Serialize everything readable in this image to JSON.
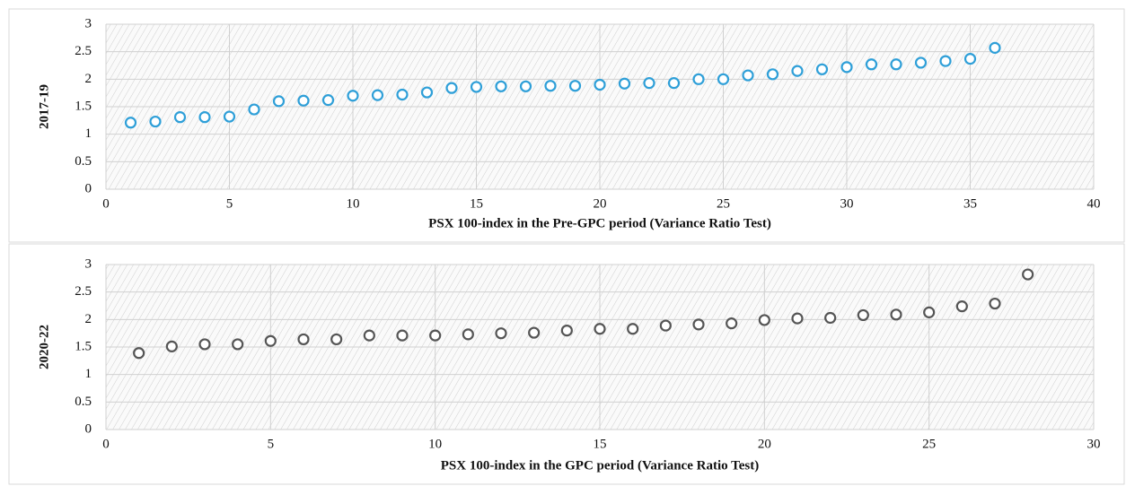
{
  "chart_data": [
    {
      "type": "scatter",
      "x_label": "PSX 100-index in the Pre-GPC period (Variance Ratio Test)",
      "y_label": "2017-19",
      "color": "#2e9fd8",
      "grid": true,
      "xlim": [
        0,
        40
      ],
      "xticks": [
        0,
        5,
        10,
        15,
        20,
        25,
        30,
        35,
        40
      ],
      "ylim": [
        0,
        3
      ],
      "yticks": [
        0,
        0.5,
        1,
        1.5,
        2,
        2.5,
        3
      ],
      "x": [
        1,
        2,
        3,
        4,
        5,
        6,
        7,
        8,
        9,
        10,
        11,
        12,
        13,
        14,
        15,
        16,
        17,
        18,
        19,
        20,
        21,
        22,
        23,
        24,
        25,
        26,
        27,
        28,
        29,
        30,
        31,
        32,
        33,
        34,
        35,
        36
      ],
      "values": [
        1.21,
        1.23,
        1.31,
        1.31,
        1.32,
        1.45,
        1.6,
        1.61,
        1.62,
        1.7,
        1.71,
        1.72,
        1.76,
        1.84,
        1.86,
        1.87,
        1.87,
        1.88,
        1.88,
        1.9,
        1.92,
        1.93,
        1.93,
        2.0,
        2.0,
        2.07,
        2.09,
        2.15,
        2.18,
        2.22,
        2.27,
        2.27,
        2.3,
        2.33,
        2.37,
        2.57
      ]
    },
    {
      "type": "scatter",
      "x_label": "PSX 100-index in the GPC period (Variance Ratio Test)",
      "y_label": "2020-22",
      "color": "#555555",
      "grid": true,
      "xlim": [
        0,
        30
      ],
      "xticks": [
        0,
        5,
        10,
        15,
        20,
        25,
        30
      ],
      "ylim": [
        0,
        3
      ],
      "yticks": [
        0,
        0.5,
        1,
        1.5,
        2,
        2.5,
        3
      ],
      "x": [
        1,
        2,
        3,
        4,
        5,
        6,
        7,
        8,
        9,
        10,
        11,
        12,
        13,
        14,
        15,
        16,
        17,
        18,
        19,
        20,
        21,
        22,
        23,
        24,
        25,
        26,
        27,
        28
      ],
      "values": [
        1.39,
        1.51,
        1.55,
        1.55,
        1.61,
        1.64,
        1.64,
        1.71,
        1.71,
        1.71,
        1.73,
        1.75,
        1.76,
        1.8,
        1.83,
        1.83,
        1.89,
        1.91,
        1.93,
        1.99,
        2.02,
        2.03,
        2.08,
        2.09,
        2.13,
        2.24,
        2.29,
        2.82
      ]
    }
  ]
}
